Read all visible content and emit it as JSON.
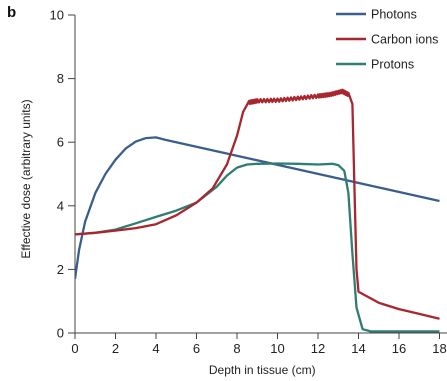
{
  "panel_label": "b",
  "chart_data": {
    "type": "line",
    "title": "",
    "xlabel": "Depth in tissue (cm)",
    "ylabel": "Effective dose (arbitrary units)",
    "xlim": [
      0,
      18
    ],
    "ylim": [
      0,
      10
    ],
    "x_ticks": [
      0,
      2,
      4,
      6,
      8,
      10,
      12,
      14,
      16,
      18
    ],
    "y_ticks": [
      0,
      2,
      4,
      6,
      8,
      10
    ],
    "grid": false,
    "legend_position": "top-right",
    "series": [
      {
        "name": "Photons",
        "color": "#3a5f8c",
        "points": [
          [
            0,
            1.7
          ],
          [
            0.2,
            2.6
          ],
          [
            0.5,
            3.5
          ],
          [
            1,
            4.4
          ],
          [
            1.5,
            5.0
          ],
          [
            2,
            5.45
          ],
          [
            2.5,
            5.8
          ],
          [
            3,
            6.02
          ],
          [
            3.5,
            6.13
          ],
          [
            4,
            6.15
          ],
          [
            4.5,
            6.07
          ],
          [
            18,
            4.15
          ]
        ]
      },
      {
        "name": "Carbon ions",
        "color": "#a8262e",
        "points": [
          [
            0,
            3.1
          ],
          [
            1,
            3.15
          ],
          [
            2,
            3.22
          ],
          [
            3,
            3.3
          ],
          [
            4,
            3.42
          ],
          [
            5,
            3.7
          ],
          [
            6,
            4.1
          ],
          [
            6.8,
            4.55
          ],
          [
            7.5,
            5.3
          ],
          [
            8,
            6.2
          ],
          [
            8.3,
            6.95
          ],
          [
            8.6,
            7.25
          ],
          [
            9,
            7.3
          ],
          [
            10,
            7.32
          ],
          [
            11,
            7.38
          ],
          [
            12,
            7.45
          ],
          [
            12.6,
            7.5
          ],
          [
            13.2,
            7.6
          ],
          [
            13.5,
            7.5
          ],
          [
            13.7,
            7.2
          ],
          [
            13.8,
            4.5
          ],
          [
            13.9,
            2.0
          ],
          [
            14,
            1.3
          ],
          [
            15,
            0.95
          ],
          [
            16,
            0.75
          ],
          [
            17,
            0.6
          ],
          [
            18,
            0.45
          ]
        ]
      },
      {
        "name": "Protons",
        "color": "#2f7d73",
        "points": [
          [
            0,
            3.1
          ],
          [
            1,
            3.15
          ],
          [
            2,
            3.25
          ],
          [
            3,
            3.45
          ],
          [
            4,
            3.65
          ],
          [
            5,
            3.85
          ],
          [
            6,
            4.1
          ],
          [
            7,
            4.6
          ],
          [
            7.5,
            4.95
          ],
          [
            8,
            5.2
          ],
          [
            8.5,
            5.3
          ],
          [
            9,
            5.32
          ],
          [
            10,
            5.33
          ],
          [
            11,
            5.32
          ],
          [
            12,
            5.3
          ],
          [
            12.7,
            5.32
          ],
          [
            13,
            5.28
          ],
          [
            13.3,
            5.1
          ],
          [
            13.5,
            4.4
          ],
          [
            13.7,
            2.5
          ],
          [
            13.9,
            0.8
          ],
          [
            14.2,
            0.12
          ],
          [
            14.6,
            0.05
          ],
          [
            18,
            0.05
          ]
        ]
      }
    ]
  }
}
